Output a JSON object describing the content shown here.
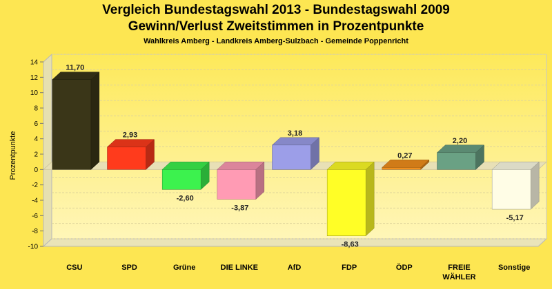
{
  "chart_data": {
    "type": "bar",
    "title": "Vergleich Bundestagswahl 2013 - Bundestagswahl 2009",
    "subtitle_line": "Gewinn/Verlust Zweitstimmen in Prozentpunkte",
    "caption": "Wahlkreis Amberg - Landkreis Amberg-Sulzbach - Gemeinde Poppenricht",
    "ylabel": "Prozentpunkte",
    "xlabel": "",
    "ylim": [
      -10,
      14
    ],
    "yticks": [
      14,
      12,
      10,
      8,
      6,
      4,
      2,
      0,
      -2,
      -4,
      -6,
      -8,
      -10
    ],
    "categories": [
      "CSU",
      "SPD",
      "Grüne",
      "DIE LINKE",
      "AfD",
      "FDP",
      "ÖDP",
      "FREIE WÄHLER",
      "Sonstige"
    ],
    "category_lines": [
      [
        "CSU"
      ],
      [
        "SPD"
      ],
      [
        "Grüne"
      ],
      [
        "DIE LINKE"
      ],
      [
        "AfD"
      ],
      [
        "FDP"
      ],
      [
        "ÖDP"
      ],
      [
        "FREIE",
        "WÄHLER"
      ],
      [
        "Sonstige"
      ]
    ],
    "values": [
      11.7,
      2.93,
      -2.6,
      -3.87,
      3.18,
      -8.63,
      0.27,
      2.2,
      -5.17
    ],
    "value_labels": [
      "11,70",
      "2,93",
      "-2,60",
      "-3,87",
      "3,18",
      "-8,63",
      "0,27",
      "2,20",
      "-5,17"
    ],
    "colors": [
      "#3a3618",
      "#ff3b1c",
      "#3cf24e",
      "#ff9bb4",
      "#9c9ee8",
      "#fffe26",
      "#f28f1c",
      "#6aa184",
      "#fffde6"
    ],
    "grid": true
  }
}
